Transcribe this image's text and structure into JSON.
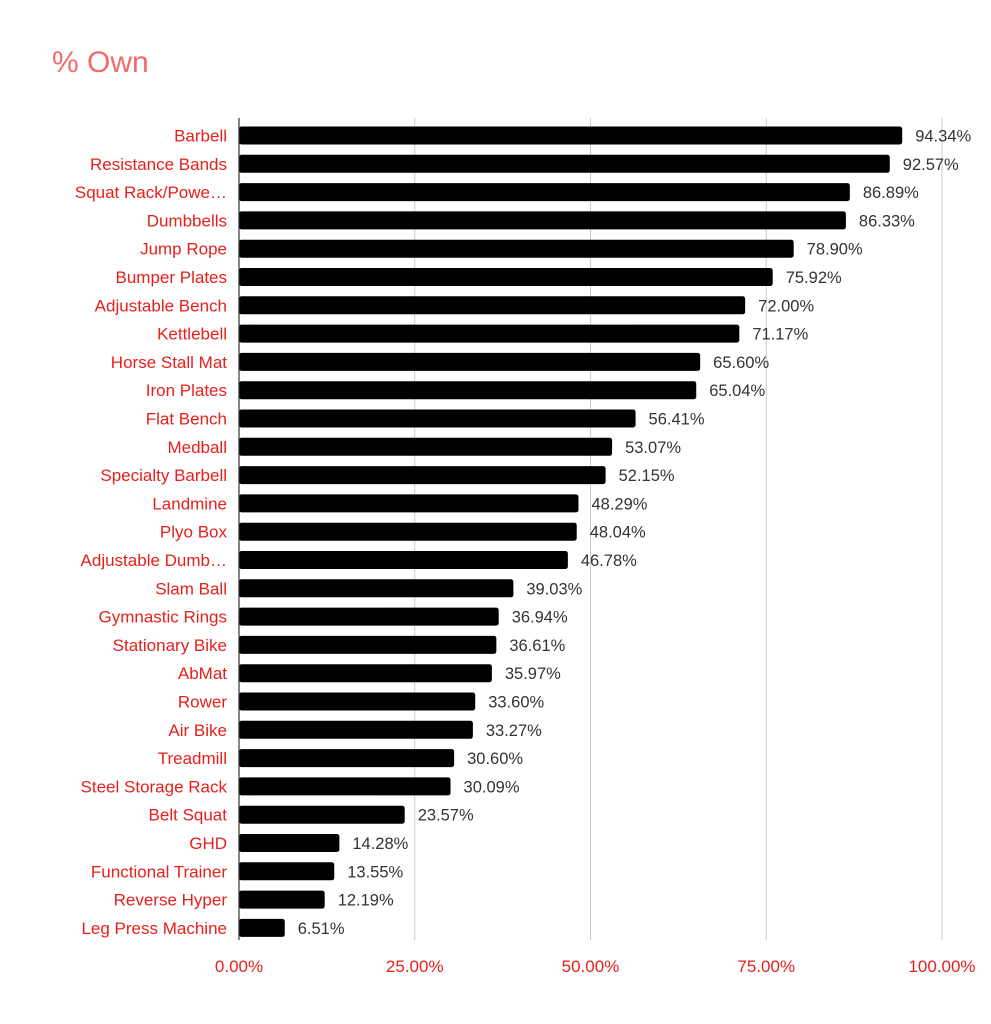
{
  "chart_data": {
    "type": "bar",
    "orientation": "horizontal",
    "title": "% Own",
    "xlabel": "",
    "ylabel": "",
    "categories": [
      "Barbell",
      "Resistance Bands",
      "Squat Rack/Powe…",
      "Dumbbells",
      "Jump Rope",
      "Bumper Plates",
      "Adjustable Bench",
      "Kettlebell",
      "Horse Stall Mat",
      "Iron Plates",
      "Flat Bench",
      "Medball",
      "Specialty Barbell",
      "Landmine",
      "Plyo Box",
      "Adjustable Dumb…",
      "Slam Ball",
      "Gymnastic Rings",
      "Stationary Bike",
      "AbMat",
      "Rower",
      "Air Bike",
      "Treadmill",
      "Steel Storage Rack",
      "Belt Squat",
      "GHD",
      "Functional Trainer",
      "Reverse Hyper",
      "Leg Press Machine"
    ],
    "values": [
      94.34,
      92.57,
      86.89,
      86.33,
      78.9,
      75.92,
      72.0,
      71.17,
      65.6,
      65.04,
      56.41,
      53.07,
      52.15,
      48.29,
      48.04,
      46.78,
      39.03,
      36.94,
      36.61,
      35.97,
      33.6,
      33.27,
      30.6,
      30.09,
      23.57,
      14.28,
      13.55,
      12.19,
      6.51
    ],
    "data_labels": [
      "94.34%",
      "92.57%",
      "86.89%",
      "86.33%",
      "78.90%",
      "75.92%",
      "72.00%",
      "71.17%",
      "65.60%",
      "65.04%",
      "56.41%",
      "53.07%",
      "52.15%",
      "48.29%",
      "48.04%",
      "46.78%",
      "39.03%",
      "36.94%",
      "36.61%",
      "35.97%",
      "33.60%",
      "33.27%",
      "30.60%",
      "30.09%",
      "23.57%",
      "14.28%",
      "13.55%",
      "12.19%",
      "6.51%"
    ],
    "xlim": [
      0,
      100
    ],
    "x_ticks": [
      0,
      25,
      50,
      75,
      100
    ],
    "x_tick_labels": [
      "0.00%",
      "25.00%",
      "50.00%",
      "75.00%",
      "100.00%"
    ],
    "grid": true,
    "legend": "none",
    "colors": {
      "bar": "#000000",
      "title": "#f26b6b",
      "category_label": "#e8201c",
      "tick_label": "#e8201c",
      "data_label": "#333333",
      "gridline": "#cccccc",
      "axis": "#333333"
    }
  }
}
